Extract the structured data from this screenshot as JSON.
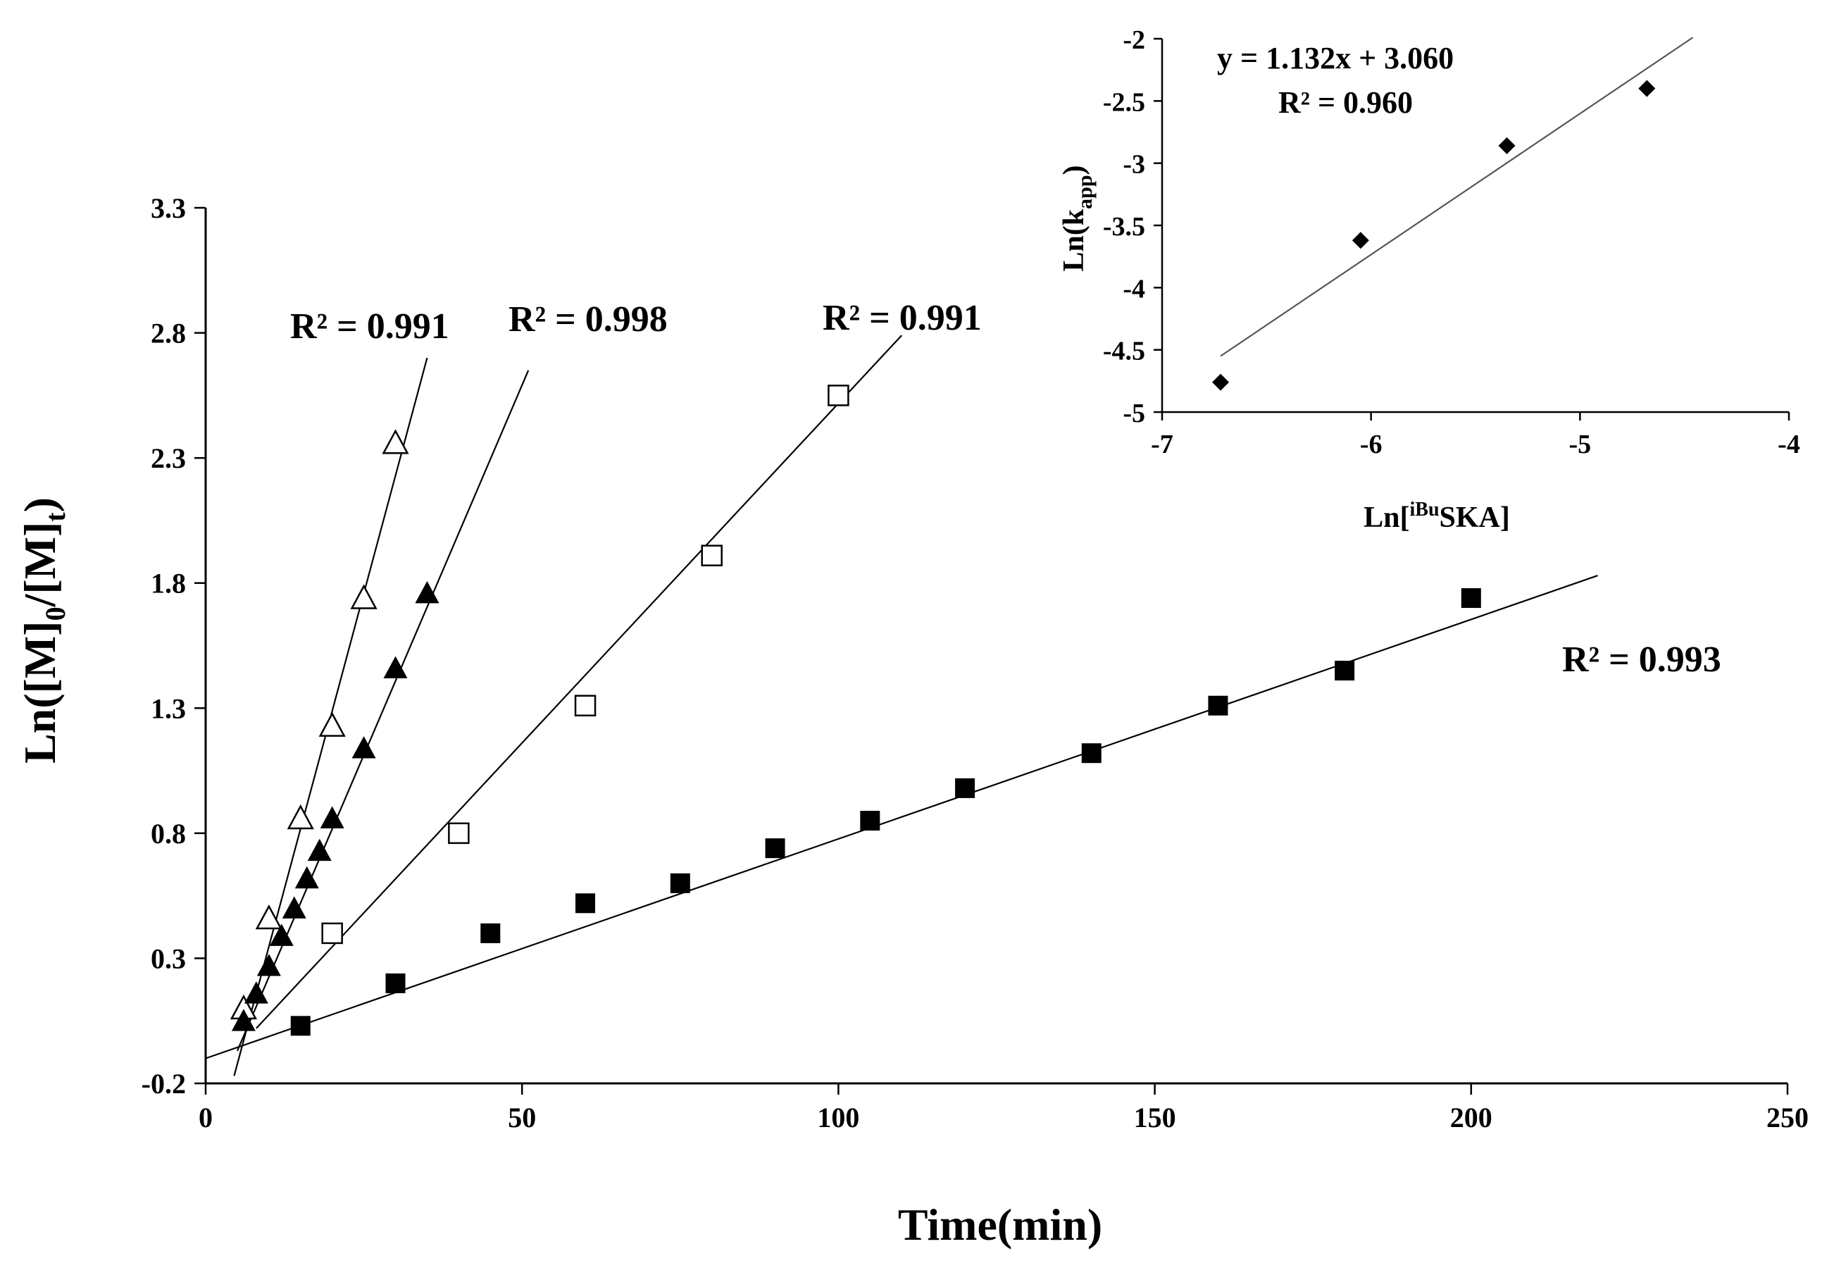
{
  "chart_data": [
    {
      "type": "scatter",
      "role": "main",
      "xlabel": "Time(min)",
      "ylabel": "Ln([M]0/[M]t)",
      "ylabel_parts": {
        "a": "Ln([M]",
        "sub1": "0",
        "b": "/[M]",
        "sub2": "t",
        "c": ")"
      },
      "xlim": [
        0,
        250
      ],
      "ylim": [
        -0.2,
        3.3
      ],
      "xticks": [
        0,
        50,
        100,
        150,
        200,
        250
      ],
      "xtick_labels": [
        "0",
        "50",
        "100",
        "150",
        "200",
        "250"
      ],
      "yticks": [
        -0.2,
        0.3,
        0.8,
        1.3,
        1.8,
        2.3,
        2.8,
        3.3
      ],
      "ytick_labels": [
        "-0.2",
        "0.3",
        "0.8",
        "1.3",
        "1.8",
        "2.3",
        "2.8",
        "3.3"
      ],
      "grid": false,
      "series": [
        {
          "name": "open triangles",
          "marker": "triangle-open",
          "x": [
            6,
            10,
            15,
            20,
            25,
            30
          ],
          "y": [
            0.1,
            0.46,
            0.86,
            1.23,
            1.74,
            2.36
          ],
          "fit": {
            "x0": 4.5,
            "x1": 35,
            "y0": -0.17,
            "y1": 2.7
          },
          "r2_label": "R² = 0.991"
        },
        {
          "name": "filled triangles",
          "marker": "triangle-filled",
          "x": [
            6,
            8,
            10,
            12,
            14,
            16,
            18,
            20,
            25,
            30,
            35
          ],
          "y": [
            0.05,
            0.16,
            0.27,
            0.39,
            0.5,
            0.62,
            0.73,
            0.86,
            1.14,
            1.46,
            1.76
          ],
          "fit": {
            "x0": 5,
            "x1": 51,
            "y0": -0.07,
            "y1": 2.65
          },
          "r2_label": "R² = 0.998"
        },
        {
          "name": "open squares",
          "marker": "square-open",
          "x": [
            20,
            40,
            60,
            80,
            100
          ],
          "y": [
            0.4,
            0.8,
            1.31,
            1.91,
            2.55
          ],
          "fit": {
            "x0": 8,
            "x1": 110,
            "y0": 0.02,
            "y1": 2.79
          },
          "r2_label": "R² = 0.991"
        },
        {
          "name": "filled squares",
          "marker": "square-filled",
          "x": [
            15,
            30,
            45,
            60,
            75,
            90,
            105,
            120,
            140,
            160,
            180,
            200
          ],
          "y": [
            0.03,
            0.2,
            0.4,
            0.52,
            0.6,
            0.74,
            0.85,
            0.98,
            1.12,
            1.31,
            1.45,
            1.74
          ],
          "fit": {
            "x0": 0,
            "x1": 220,
            "y0": -0.1,
            "y1": 1.83
          },
          "r2_label": "R² = 0.993"
        }
      ]
    },
    {
      "type": "scatter",
      "role": "inset",
      "xlabel": "Ln[iBuSKA]",
      "xlabel_parts": {
        "a": "Ln[",
        "sup": "iBu",
        "b": "SKA]"
      },
      "ylabel": "Ln(kapp)",
      "ylabel_parts": {
        "a": "Ln(k",
        "sub": "app",
        "b": ")"
      },
      "xlim": [
        -7,
        -4
      ],
      "ylim": [
        -5,
        -2
      ],
      "xticks": [
        -7,
        -6,
        -5,
        -4
      ],
      "xtick_labels": [
        "-7",
        "-6",
        "-5",
        "-4"
      ],
      "yticks": [
        -5,
        -4.5,
        -4,
        -3.5,
        -3,
        -2.5,
        -2
      ],
      "ytick_labels": [
        "-5",
        "-4.5",
        "-4",
        "-3.5",
        "-3",
        "-2.5",
        "-2"
      ],
      "grid": false,
      "series": [
        {
          "name": "kapp",
          "marker": "diamond-filled",
          "x": [
            -6.72,
            -6.05,
            -5.35,
            -4.68
          ],
          "y": [
            -4.76,
            -3.62,
            -2.86,
            -2.4
          ],
          "fit": {
            "x0": -6.72,
            "x1": -4.46,
            "y0": -4.55,
            "y1": -1.99
          }
        }
      ],
      "equation": "y = 1.132x + 3.060",
      "r2_label": "R² = 0.960"
    }
  ]
}
